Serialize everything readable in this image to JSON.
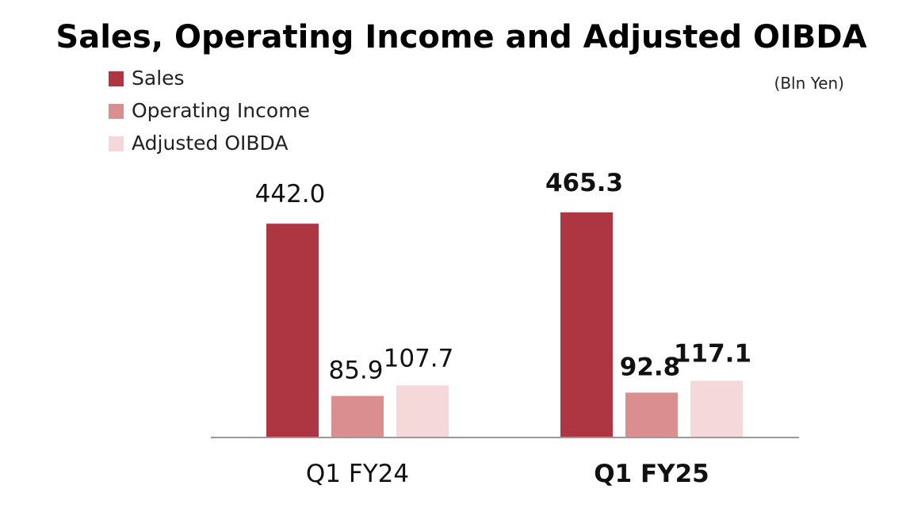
{
  "chart_data": {
    "type": "bar",
    "title": "Sales, Operating Income and Adjusted OIBDA",
    "unit_label": "(Bln Yen)",
    "categories": [
      "Q1 FY24",
      "Q1 FY25"
    ],
    "series": [
      {
        "name": "Sales",
        "color": "#ae3542",
        "values": [
          442.0,
          465.3
        ],
        "labels": [
          "442.0",
          "465.3"
        ]
      },
      {
        "name": "Operating Income",
        "color": "#db8e8f",
        "values": [
          85.9,
          92.8
        ],
        "labels": [
          "85.9",
          "92.8"
        ]
      },
      {
        "name": "Adjusted OIBDA",
        "color": "#f5d9da",
        "values": [
          107.7,
          117.1
        ],
        "labels": [
          "107.7",
          "117.1"
        ]
      }
    ],
    "bold_categories": [
      false,
      true
    ],
    "legend_position": "top-left",
    "grid": false,
    "ylim": [
      0,
      465.3
    ]
  }
}
